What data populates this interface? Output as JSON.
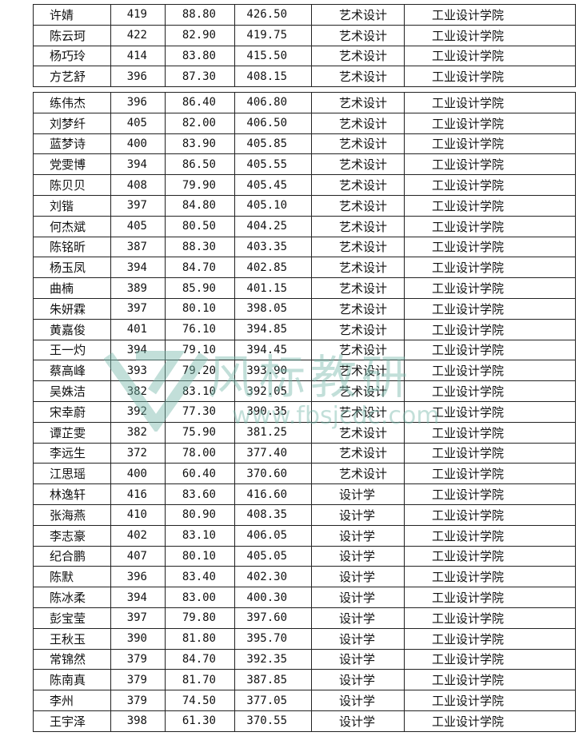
{
  "table_top": [
    [
      "许婧",
      "419",
      "88.80",
      "426.50",
      "艺术设计",
      "工业设计学院"
    ],
    [
      "陈云珂",
      "422",
      "82.90",
      "419.75",
      "艺术设计",
      "工业设计学院"
    ],
    [
      "杨巧玲",
      "414",
      "83.80",
      "415.50",
      "艺术设计",
      "工业设计学院"
    ],
    [
      "方艺舒",
      "396",
      "87.30",
      "408.15",
      "艺术设计",
      "工业设计学院"
    ]
  ],
  "table_main": [
    [
      "练伟杰",
      "396",
      "86.40",
      "406.80",
      "艺术设计",
      "工业设计学院"
    ],
    [
      "刘梦纤",
      "405",
      "82.00",
      "406.50",
      "艺术设计",
      "工业设计学院"
    ],
    [
      "蓝梦诗",
      "400",
      "83.90",
      "405.85",
      "艺术设计",
      "工业设计学院"
    ],
    [
      "党雯博",
      "394",
      "86.50",
      "405.55",
      "艺术设计",
      "工业设计学院"
    ],
    [
      "陈贝贝",
      "408",
      "79.90",
      "405.45",
      "艺术设计",
      "工业设计学院"
    ],
    [
      "刘锴",
      "397",
      "84.80",
      "405.10",
      "艺术设计",
      "工业设计学院"
    ],
    [
      "何杰斌",
      "405",
      "80.50",
      "404.25",
      "艺术设计",
      "工业设计学院"
    ],
    [
      "陈铭昕",
      "387",
      "88.30",
      "403.35",
      "艺术设计",
      "工业设计学院"
    ],
    [
      "杨玉凤",
      "394",
      "84.70",
      "402.85",
      "艺术设计",
      "工业设计学院"
    ],
    [
      "曲楠",
      "389",
      "85.90",
      "401.15",
      "艺术设计",
      "工业设计学院"
    ],
    [
      "朱妍霖",
      "397",
      "80.10",
      "398.05",
      "艺术设计",
      "工业设计学院"
    ],
    [
      "黄嘉俊",
      "401",
      "76.10",
      "394.85",
      "艺术设计",
      "工业设计学院"
    ],
    [
      "王一灼",
      "394",
      "79.10",
      "394.45",
      "艺术设计",
      "工业设计学院"
    ],
    [
      "蔡高峰",
      "393",
      "79.20",
      "393.90",
      "艺术设计",
      "工业设计学院"
    ],
    [
      "吴姝洁",
      "382",
      "83.10",
      "392.05",
      "艺术设计",
      "工业设计学院"
    ],
    [
      "宋幸蔚",
      "392",
      "77.30",
      "390.35",
      "艺术设计",
      "工业设计学院"
    ],
    [
      "谭芷雯",
      "382",
      "75.90",
      "381.25",
      "艺术设计",
      "工业设计学院"
    ],
    [
      "李远生",
      "372",
      "78.00",
      "377.40",
      "艺术设计",
      "工业设计学院"
    ],
    [
      "江思瑶",
      "400",
      "60.40",
      "370.60",
      "艺术设计",
      "工业设计学院"
    ],
    [
      "林逸轩",
      "416",
      "83.60",
      "416.60",
      "设计学",
      "工业设计学院"
    ],
    [
      "张海燕",
      "410",
      "80.90",
      "408.35",
      "设计学",
      "工业设计学院"
    ],
    [
      "李志豪",
      "402",
      "83.10",
      "406.05",
      "设计学",
      "工业设计学院"
    ],
    [
      "纪合鹏",
      "407",
      "80.10",
      "405.05",
      "设计学",
      "工业设计学院"
    ],
    [
      "陈默",
      "396",
      "83.40",
      "402.30",
      "设计学",
      "工业设计学院"
    ],
    [
      "陈冰柔",
      "394",
      "83.00",
      "400.30",
      "设计学",
      "工业设计学院"
    ],
    [
      "彭宝莹",
      "397",
      "79.80",
      "397.60",
      "设计学",
      "工业设计学院"
    ],
    [
      "王秋玉",
      "390",
      "81.80",
      "395.70",
      "设计学",
      "工业设计学院"
    ],
    [
      "常锦然",
      "379",
      "84.70",
      "392.35",
      "设计学",
      "工业设计学院"
    ],
    [
      "陈南真",
      "379",
      "81.70",
      "387.85",
      "设计学",
      "工业设计学院"
    ],
    [
      "李州",
      "379",
      "74.50",
      "377.05",
      "设计学",
      "工业设计学院"
    ],
    [
      "王宇泽",
      "398",
      "61.30",
      "370.55",
      "设计学",
      "工业设计学院"
    ]
  ],
  "watermark": {
    "logo_text": "风标教研",
    "url": "www.fbsjcdc.com",
    "color": "#78b9aa"
  }
}
